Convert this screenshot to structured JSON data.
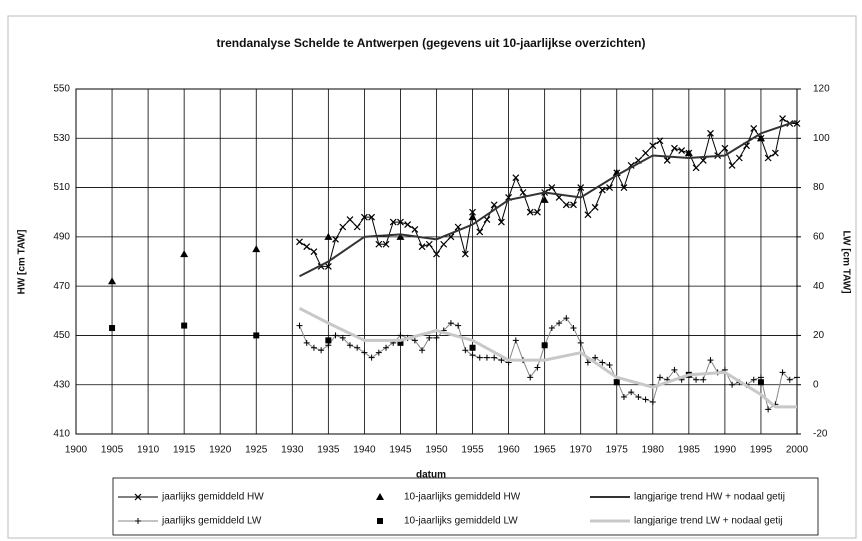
{
  "chart_data": {
    "type": "line",
    "title": "trendanalyse Schelde te Antwerpen (gegevens uit 10-jaarlijkse overzichten)",
    "x_label": "datum",
    "y_label": "HW [cm TAW]",
    "y2_label": "LW [cm TAW]",
    "xlim": [
      1900,
      2000
    ],
    "xticks": [
      1900,
      1905,
      1910,
      1915,
      1920,
      1925,
      1930,
      1935,
      1940,
      1945,
      1950,
      1955,
      1960,
      1965,
      1970,
      1975,
      1980,
      1985,
      1990,
      1995,
      2000
    ],
    "ylim": [
      410,
      550
    ],
    "yticks": [
      410,
      430,
      450,
      470,
      490,
      510,
      530,
      550
    ],
    "y2lim": [
      -20,
      120
    ],
    "y2ticks": [
      -20,
      0,
      20,
      40,
      60,
      80,
      100,
      120
    ],
    "grid": true,
    "legend": "bottom",
    "series": [
      {
        "name": "jaarlijks gemiddeld HW",
        "color": "#000000",
        "marker": "x",
        "line": true,
        "x": [
          1931,
          1932,
          1933,
          1934,
          1935,
          1936,
          1937,
          1938,
          1939,
          1940,
          1941,
          1942,
          1943,
          1944,
          1945,
          1946,
          1947,
          1948,
          1949,
          1950,
          1951,
          1952,
          1953,
          1954,
          1955,
          1956,
          1957,
          1958,
          1959,
          1960,
          1961,
          1962,
          1963,
          1964,
          1965,
          1966,
          1967,
          1968,
          1969,
          1970,
          1971,
          1972,
          1973,
          1974,
          1975,
          1976,
          1977,
          1978,
          1979,
          1980,
          1981,
          1982,
          1983,
          1984,
          1985,
          1986,
          1987,
          1988,
          1989,
          1990,
          1991,
          1992,
          1993,
          1994,
          1995,
          1996,
          1997,
          1998,
          1999,
          2000
        ],
        "values": [
          488,
          486,
          484,
          478,
          478,
          489,
          494,
          497,
          494,
          498,
          498,
          487,
          487,
          496,
          496,
          495,
          493,
          486,
          487,
          483,
          487,
          490,
          494,
          483,
          500,
          492,
          497,
          503,
          496,
          506,
          514,
          508,
          500,
          500,
          508,
          510,
          506,
          503,
          503,
          510,
          499,
          502,
          509,
          510,
          516,
          510,
          519,
          521,
          524,
          527,
          529,
          521,
          526,
          525,
          524,
          518,
          521,
          532,
          523,
          526,
          519,
          522,
          527,
          534,
          530,
          522,
          524,
          538,
          536,
          536
        ]
      },
      {
        "name": "10-jaarlijks gemiddeld HW",
        "color": "#000000",
        "marker": "triangle",
        "line": false,
        "x": [
          1905,
          1915,
          1925,
          1935,
          1945,
          1955,
          1965,
          1975,
          1985,
          1995
        ],
        "values": [
          472,
          483,
          485,
          490,
          490,
          498,
          505,
          516,
          524,
          530
        ]
      },
      {
        "name": "langjarige trend HW + nodaal getij",
        "color": "#333333",
        "marker": "none",
        "line": true,
        "width": 2,
        "x": [
          1931,
          1935,
          1940,
          1945,
          1950,
          1955,
          1960,
          1965,
          1970,
          1975,
          1980,
          1985,
          1990,
          1995,
          2000
        ],
        "values": [
          474,
          480,
          490,
          491,
          489,
          495,
          505,
          508,
          506,
          515,
          523,
          522,
          523,
          532,
          537
        ]
      },
      {
        "name": "jaarlijks gemiddeld LW",
        "color": "#888888",
        "marker": "plus",
        "line": true,
        "axis": "y2",
        "x": [
          1931,
          1932,
          1933,
          1934,
          1935,
          1936,
          1937,
          1938,
          1939,
          1940,
          1941,
          1942,
          1943,
          1944,
          1945,
          1946,
          1947,
          1948,
          1949,
          1950,
          1951,
          1952,
          1953,
          1954,
          1955,
          1956,
          1957,
          1958,
          1959,
          1960,
          1961,
          1962,
          1963,
          1964,
          1965,
          1966,
          1967,
          1968,
          1969,
          1970,
          1971,
          1972,
          1973,
          1974,
          1975,
          1976,
          1977,
          1978,
          1979,
          1980,
          1981,
          1982,
          1983,
          1984,
          1985,
          1986,
          1987,
          1988,
          1989,
          1990,
          1991,
          1992,
          1993,
          1994,
          1995,
          1996,
          1997,
          1998,
          1999,
          2000
        ],
        "values": [
          24,
          17,
          15,
          14,
          16,
          20,
          19,
          16,
          15,
          13,
          11,
          13,
          15,
          17,
          20,
          19,
          18,
          14,
          19,
          19,
          22,
          25,
          24,
          14,
          12,
          11,
          11,
          11,
          10,
          9,
          18,
          10,
          3,
          7,
          16,
          23,
          25,
          27,
          23,
          17,
          9,
          11,
          9,
          8,
          2,
          -5,
          -3,
          -5,
          -6,
          -7,
          3,
          2,
          6,
          2,
          4,
          2,
          2,
          10,
          5,
          6,
          0,
          1,
          0,
          2,
          3,
          -10,
          -8,
          5,
          2,
          3
        ]
      },
      {
        "name": "10-jaarlijks gemiddeld LW",
        "color": "#000000",
        "marker": "square",
        "line": false,
        "axis": "y2",
        "x": [
          1905,
          1915,
          1925,
          1935,
          1945,
          1955,
          1965,
          1975,
          1985,
          1995
        ],
        "values": [
          23,
          24,
          20,
          18,
          17,
          15,
          16,
          1,
          4,
          1
        ]
      },
      {
        "name": "langjarige trend LW + nodaal getij",
        "color": "#c8c8c8",
        "marker": "none",
        "line": true,
        "width": 3,
        "axis": "y2",
        "x": [
          1931,
          1935,
          1940,
          1945,
          1950,
          1955,
          1960,
          1965,
          1970,
          1975,
          1980,
          1985,
          1990,
          1995,
          1997,
          2000
        ],
        "values": [
          31,
          25,
          18,
          18,
          22,
          18,
          10,
          10,
          13,
          3,
          -1,
          4,
          5,
          -4,
          -9,
          -9
        ]
      }
    ]
  }
}
